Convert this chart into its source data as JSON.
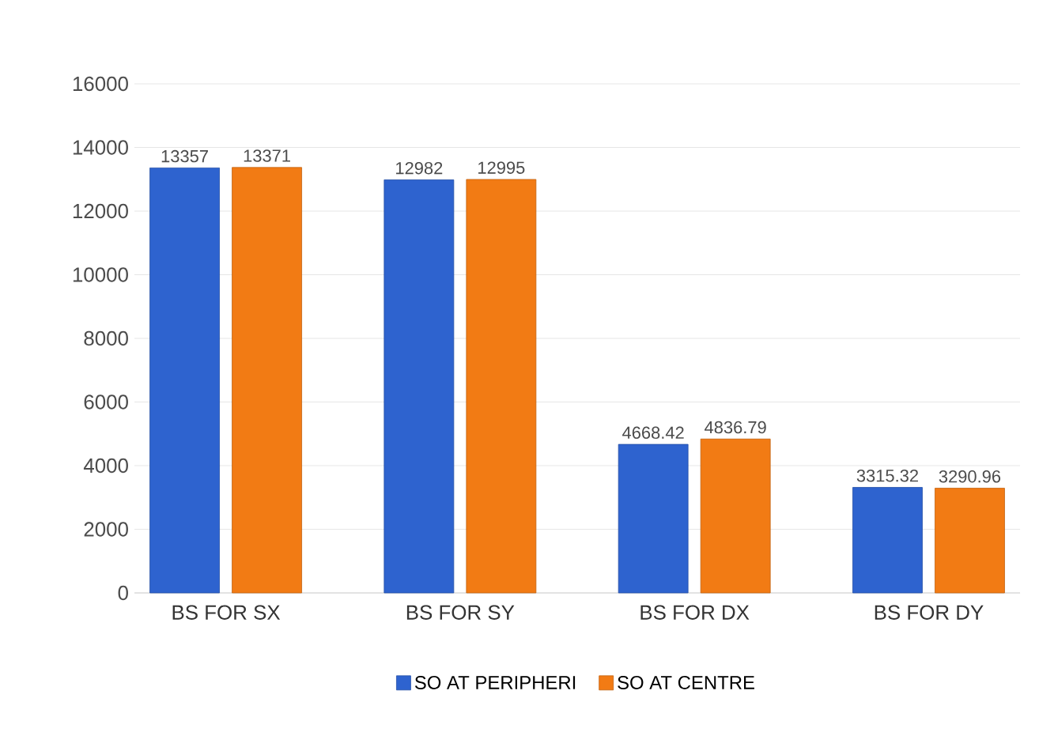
{
  "chart_data": {
    "type": "bar",
    "categories": [
      "BS FOR SX",
      "BS FOR SY",
      "BS FOR DX",
      "BS FOR DY"
    ],
    "series": [
      {
        "name": "SO AT PERIPHERI",
        "color": "#2e63cf",
        "values": [
          13357,
          12982,
          4668.42,
          3315.32
        ]
      },
      {
        "name": "SO AT CENTRE",
        "color": "#f27b14",
        "values": [
          13371,
          12995,
          4836.79,
          3290.96
        ]
      }
    ],
    "ylim": [
      0,
      16000
    ],
    "yticks": [
      0,
      2000,
      4000,
      6000,
      8000,
      10000,
      12000,
      14000,
      16000
    ],
    "grid": "y",
    "legend": "bottom",
    "data_labels": true
  }
}
